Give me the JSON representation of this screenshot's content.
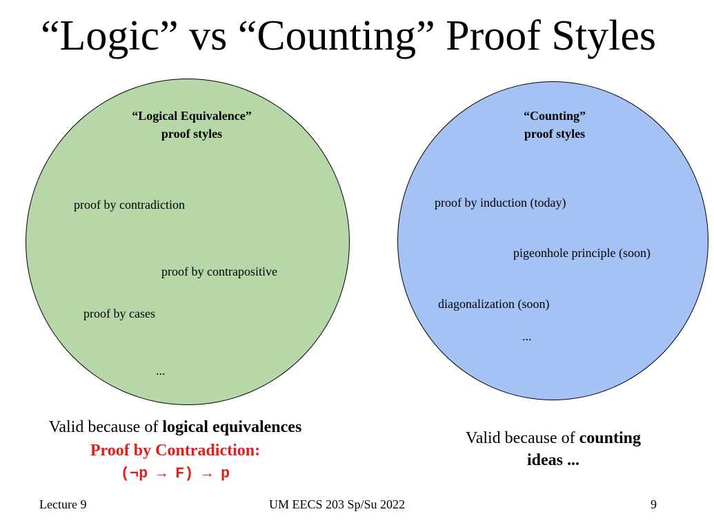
{
  "title": "“Logic” vs “Counting” Proof Styles",
  "logic_circle": {
    "heading_line1": "“Logical Equivalence”",
    "heading_line2": "proof styles",
    "items": [
      "proof by contradiction",
      "proof by contrapositive",
      "proof by cases",
      "..."
    ],
    "color": "#b6d7a8"
  },
  "counting_circle": {
    "heading_line1": "“Counting”",
    "heading_line2": "proof styles",
    "items": [
      "proof by induction (today)",
      "pigeonhole principle (soon)",
      "diagonalization (soon)",
      "..."
    ],
    "color": "#a4c2f4"
  },
  "logic_caption": {
    "prefix": "Valid because of ",
    "bold": "logical equivalences",
    "highlight": "Proof by Contradiction:",
    "formula": "(¬p → F) → p"
  },
  "counting_caption": {
    "prefix": "Valid because of ",
    "bold_line1": "counting",
    "bold_line2": "ideas ..."
  },
  "footer": {
    "left": "Lecture 9",
    "center": "UM EECS 203 Sp/Su 2022",
    "right": "9"
  },
  "colors": {
    "highlight": "#e31c1c"
  }
}
